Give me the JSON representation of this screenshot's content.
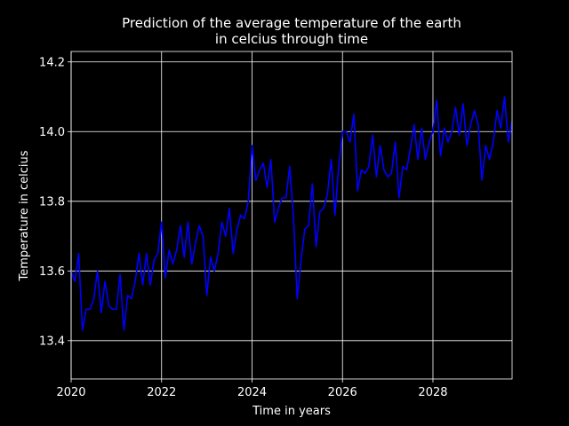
{
  "chart_data": {
    "type": "line",
    "title_line1": "Prediction of the average temperature of the earth",
    "title_line2": "in celcius through time",
    "xlabel": "Time in years",
    "ylabel": "Temperature in celcius",
    "xlim": [
      2020,
      2029.75
    ],
    "ylim": [
      13.29,
      14.23
    ],
    "x_ticks": [
      2020,
      2022,
      2024,
      2026,
      2028
    ],
    "x_tick_labels": [
      "2020",
      "2022",
      "2024",
      "2026",
      "2028"
    ],
    "y_ticks": [
      13.4,
      13.6,
      13.8,
      14.0,
      14.2
    ],
    "y_tick_labels": [
      "13.4",
      "13.6",
      "13.8",
      "14.0",
      "14.2"
    ],
    "grid": true,
    "colors": {
      "background": "#000000",
      "line": "#0000ff",
      "grid": "#ffffff",
      "text": "#ffffff"
    },
    "series": [
      {
        "x": [
          2020.0,
          2020.083,
          2020.167,
          2020.25,
          2020.333,
          2020.417,
          2020.5,
          2020.583,
          2020.667,
          2020.75,
          2020.833,
          2020.917,
          2021.0,
          2021.083,
          2021.167,
          2021.25,
          2021.333,
          2021.417,
          2021.5,
          2021.583,
          2021.667,
          2021.75,
          2021.833,
          2021.917,
          2022.0,
          2022.083,
          2022.167,
          2022.25,
          2022.333,
          2022.417,
          2022.5,
          2022.583,
          2022.667,
          2022.75,
          2022.833,
          2022.917,
          2023.0,
          2023.083,
          2023.167,
          2023.25,
          2023.333,
          2023.417,
          2023.5,
          2023.583,
          2023.667,
          2023.75,
          2023.833,
          2023.917,
          2024.0,
          2024.083,
          2024.167,
          2024.25,
          2024.333,
          2024.417,
          2024.5,
          2024.583,
          2024.667,
          2024.75,
          2024.833,
          2024.917,
          2025.0,
          2025.083,
          2025.167,
          2025.25,
          2025.333,
          2025.417,
          2025.5,
          2025.583,
          2025.667,
          2025.75,
          2025.833,
          2025.917,
          2026.0,
          2026.083,
          2026.167,
          2026.25,
          2026.333,
          2026.417,
          2026.5,
          2026.583,
          2026.667,
          2026.75,
          2026.833,
          2026.917,
          2027.0,
          2027.083,
          2027.167,
          2027.25,
          2027.333,
          2027.417,
          2027.5,
          2027.583,
          2027.667,
          2027.75,
          2027.833,
          2027.917,
          2028.0,
          2028.083,
          2028.167,
          2028.25,
          2028.333,
          2028.417,
          2028.5,
          2028.583,
          2028.667,
          2028.75,
          2028.833,
          2028.917,
          2029.0,
          2029.083,
          2029.167,
          2029.25,
          2029.333,
          2029.417,
          2029.5,
          2029.583,
          2029.667,
          2029.75
        ],
        "values": [
          13.6,
          13.57,
          13.65,
          13.43,
          13.49,
          13.49,
          13.52,
          13.6,
          13.48,
          13.57,
          13.5,
          13.49,
          13.49,
          13.59,
          13.43,
          13.53,
          13.52,
          13.57,
          13.65,
          13.56,
          13.65,
          13.56,
          13.63,
          13.65,
          13.74,
          13.58,
          13.66,
          13.62,
          13.66,
          13.73,
          13.64,
          13.74,
          13.62,
          13.68,
          13.73,
          13.7,
          13.53,
          13.64,
          13.6,
          13.65,
          13.74,
          13.7,
          13.78,
          13.65,
          13.72,
          13.76,
          13.75,
          13.8,
          13.96,
          13.86,
          13.89,
          13.91,
          13.84,
          13.92,
          13.74,
          13.78,
          13.81,
          13.81,
          13.9,
          13.75,
          13.52,
          13.63,
          13.72,
          13.73,
          13.85,
          13.67,
          13.77,
          13.78,
          13.82,
          13.92,
          13.76,
          13.9,
          14.0,
          14.0,
          13.97,
          14.05,
          13.83,
          13.89,
          13.88,
          13.9,
          13.99,
          13.87,
          13.96,
          13.89,
          13.87,
          13.88,
          13.97,
          13.81,
          13.9,
          13.89,
          13.95,
          14.02,
          13.92,
          14.01,
          13.92,
          13.97,
          14.0,
          14.09,
          13.93,
          14.01,
          13.97,
          14.0,
          14.07,
          13.99,
          14.08,
          13.96,
          14.02,
          14.06,
          14.02,
          13.86,
          13.96,
          13.92,
          13.97,
          14.06,
          14.01,
          14.1,
          13.97,
          14.03
        ]
      }
    ]
  }
}
